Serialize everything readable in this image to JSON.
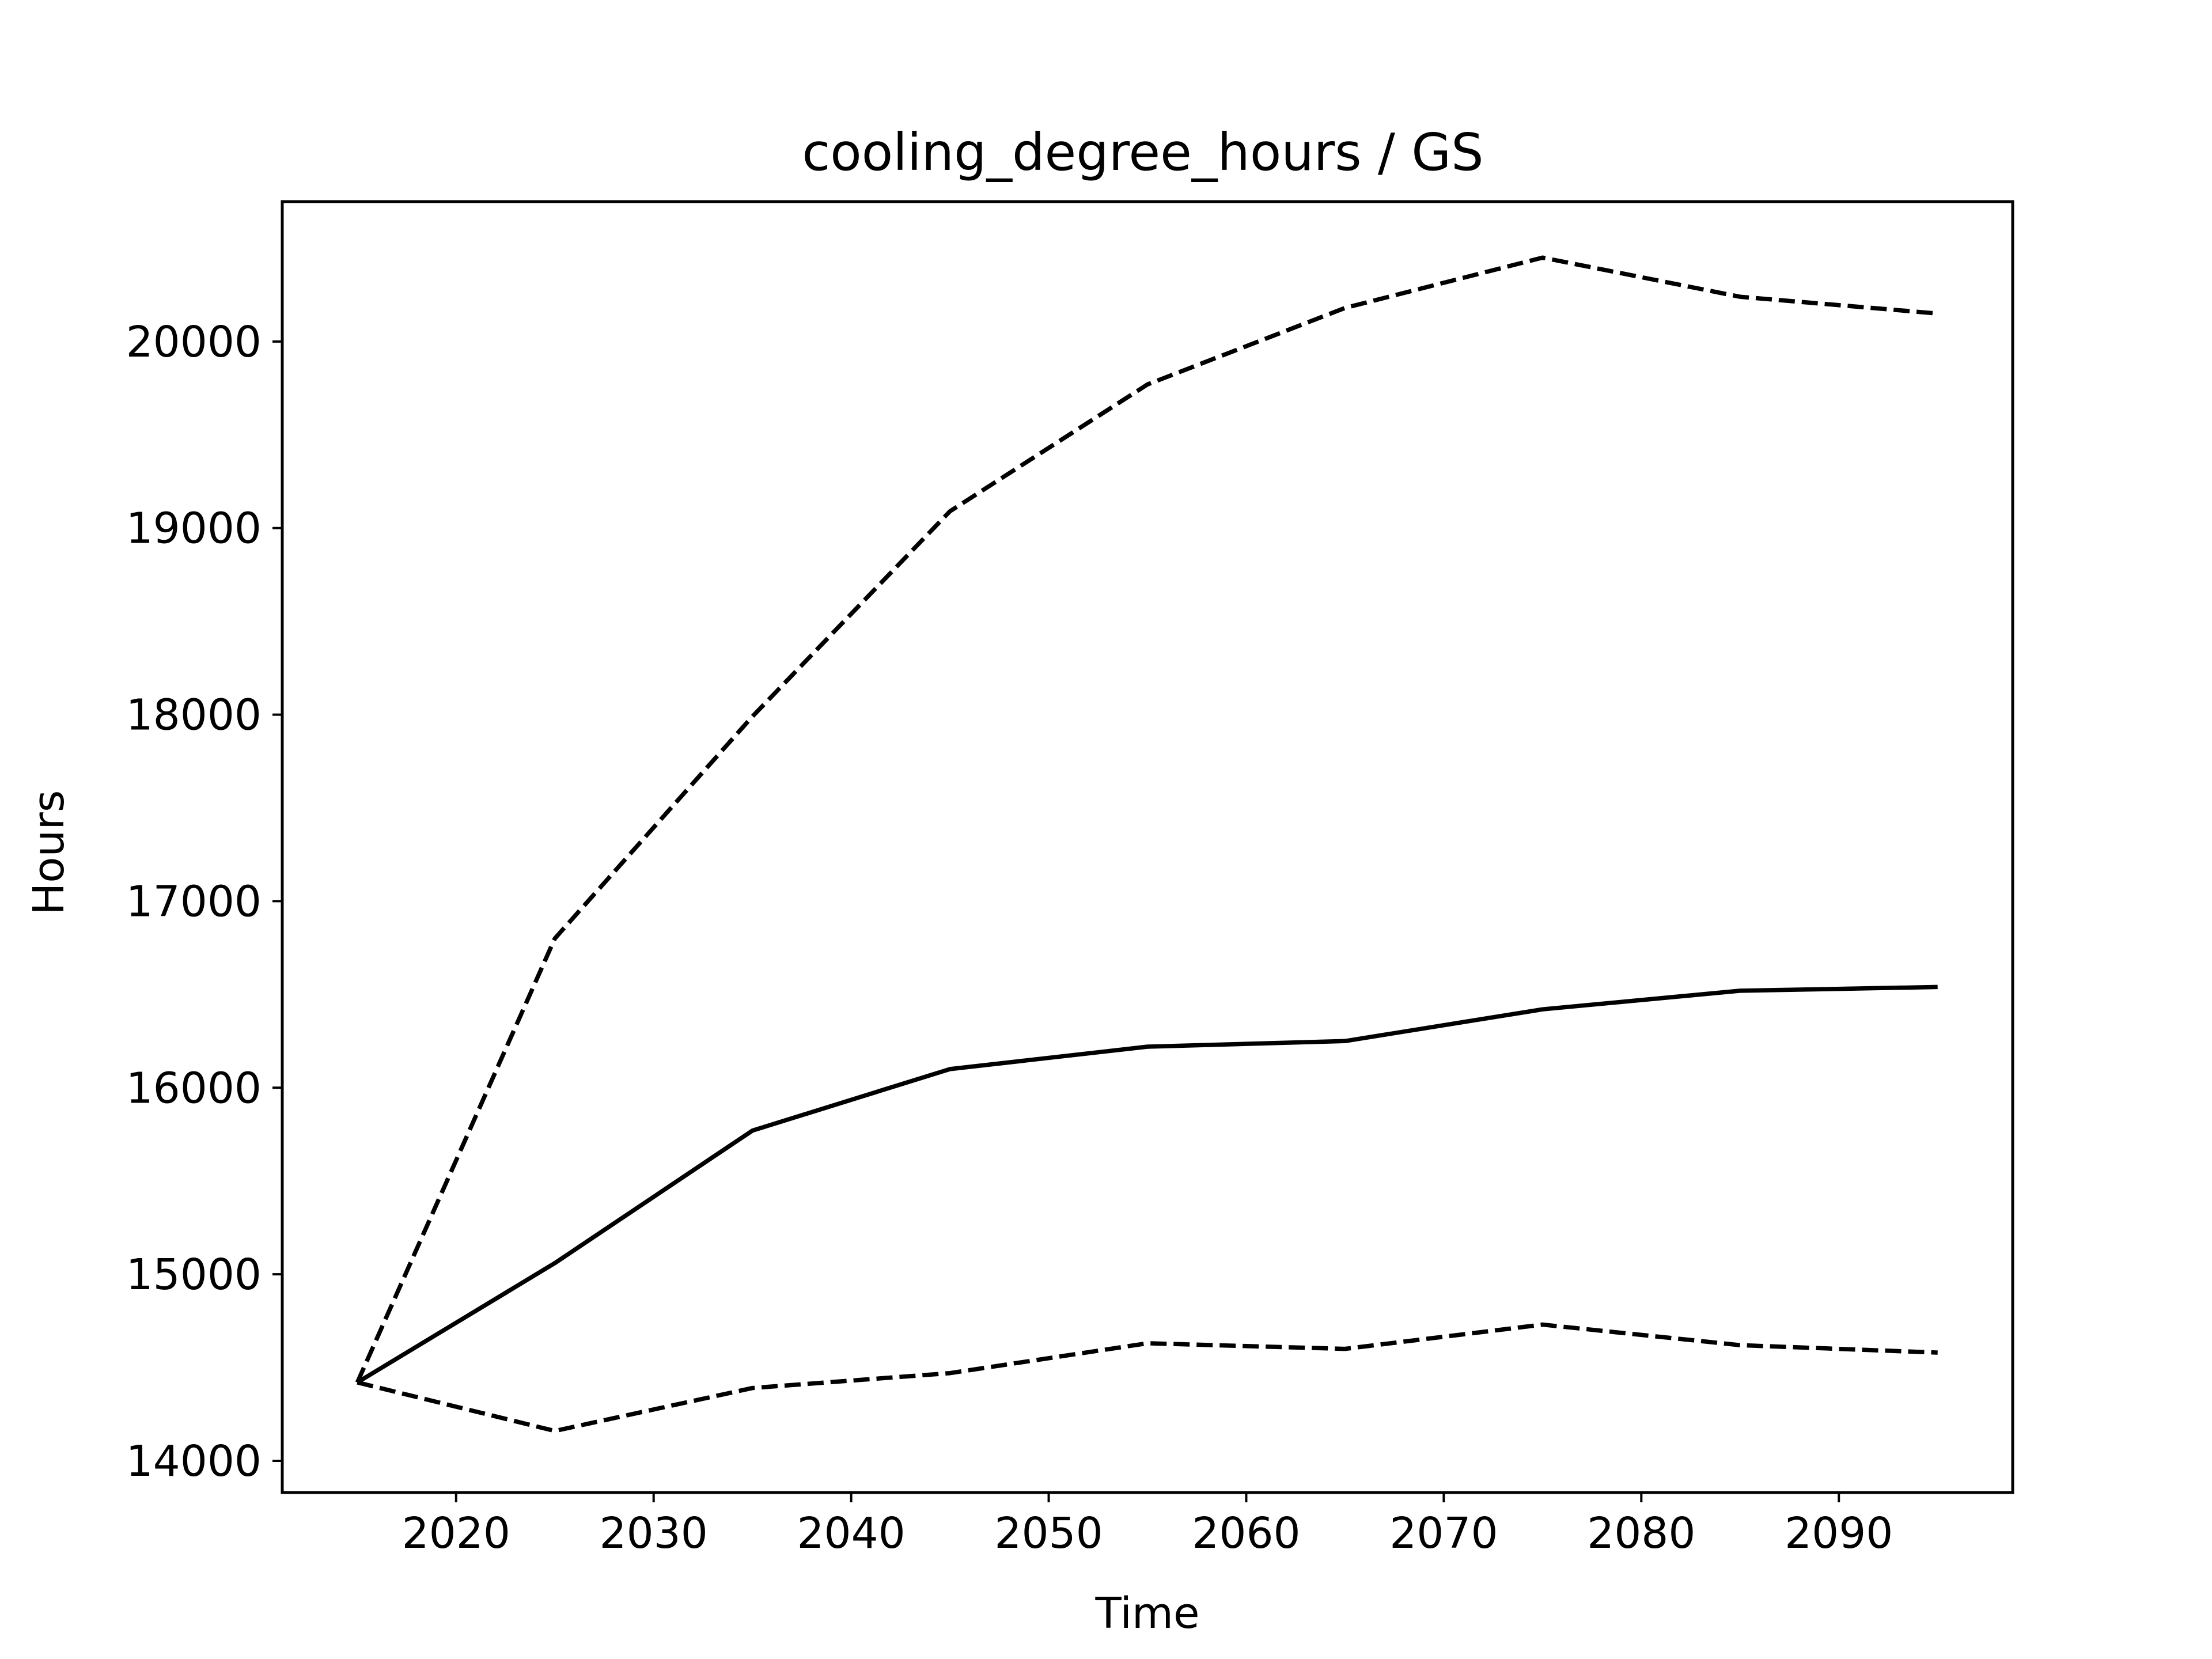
{
  "chart_data": {
    "type": "line",
    "title": "cooling_degree_hours / GS",
    "xlabel": "Time",
    "ylabel": "Hours",
    "xlim": [
      2011.2,
      2098.8
    ],
    "ylim": [
      13830,
      20750
    ],
    "xticks": [
      2020,
      2030,
      2040,
      2050,
      2060,
      2070,
      2080,
      2090
    ],
    "yticks": [
      14000,
      15000,
      16000,
      17000,
      18000,
      19000,
      20000
    ],
    "grid": false,
    "legend": "none",
    "x": [
      2015,
      2025,
      2035,
      2045,
      2055,
      2065,
      2075,
      2085,
      2095
    ],
    "series": [
      {
        "style": "dashed",
        "color": "#000000",
        "values": [
          14420,
          16800,
          17990,
          19090,
          19770,
          20180,
          20450,
          20240,
          20150
        ]
      },
      {
        "style": "solid",
        "color": "#000000",
        "values": [
          14420,
          15060,
          15770,
          16100,
          16220,
          16250,
          16420,
          16520,
          16540
        ]
      },
      {
        "style": "dashed",
        "color": "#000000",
        "values": [
          14420,
          14160,
          14390,
          14470,
          14630,
          14600,
          14730,
          14620,
          14580
        ]
      }
    ]
  }
}
